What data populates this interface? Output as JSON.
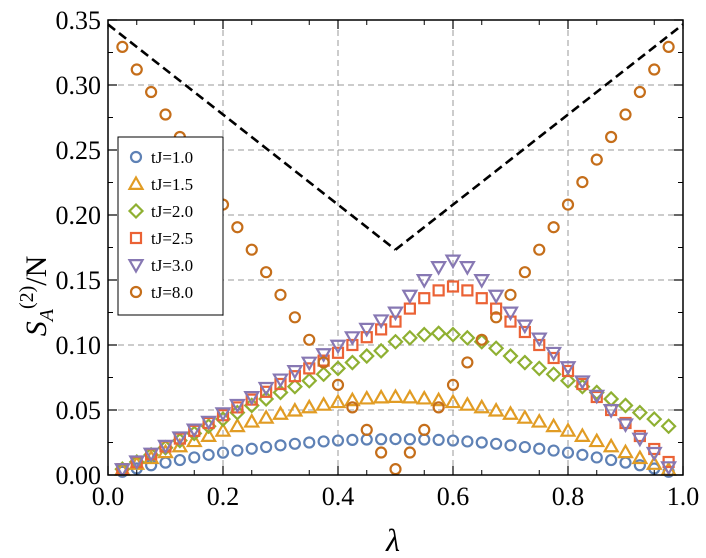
{
  "chart_data": {
    "type": "scatter",
    "xlabel": "λ",
    "ylabel": {
      "base": "S",
      "subscript": "A",
      "superscript": "(2)",
      "suffix": "/N"
    },
    "xlim": [
      0.0,
      1.0
    ],
    "ylim": [
      0.0,
      0.35
    ],
    "x_ticks": [
      "0.0",
      "0.2",
      "0.4",
      "0.6",
      "0.8",
      "1.0"
    ],
    "y_ticks": [
      "0.00",
      "0.05",
      "0.10",
      "0.15",
      "0.20",
      "0.25",
      "0.30",
      "0.35"
    ],
    "grid": true,
    "legend_position": "left-middle",
    "reference_curves": [
      {
        "style": "black-dashed",
        "x": [
          0.0,
          0.5
        ],
        "y": [
          0.3466,
          0.1733
        ]
      },
      {
        "style": "black-dashed",
        "x": [
          0.5,
          1.0
        ],
        "y": [
          0.1733,
          0.3466
        ]
      }
    ],
    "series": [
      {
        "name": "tJ=1.0",
        "marker": "circle",
        "color": "#5e81b5",
        "x": [
          0.025,
          0.05,
          0.075,
          0.1,
          0.125,
          0.15,
          0.175,
          0.2,
          0.225,
          0.25,
          0.275,
          0.3,
          0.325,
          0.35,
          0.375,
          0.4,
          0.425,
          0.45,
          0.475,
          0.5,
          0.525,
          0.55,
          0.575,
          0.6,
          0.625,
          0.65,
          0.675,
          0.7,
          0.725,
          0.75,
          0.775,
          0.8,
          0.825,
          0.85,
          0.875,
          0.9,
          0.925,
          0.95,
          0.975
        ],
        "y": [
          0.0025,
          0.005,
          0.0075,
          0.0095,
          0.0115,
          0.0135,
          0.0155,
          0.0172,
          0.0188,
          0.0202,
          0.0215,
          0.0228,
          0.024,
          0.025,
          0.0258,
          0.0265,
          0.027,
          0.0273,
          0.0275,
          0.0276,
          0.0275,
          0.0273,
          0.027,
          0.0265,
          0.0258,
          0.025,
          0.024,
          0.0228,
          0.0215,
          0.0202,
          0.0188,
          0.0172,
          0.0155,
          0.0135,
          0.0115,
          0.0095,
          0.0075,
          0.005,
          0.0025
        ]
      },
      {
        "name": "tJ=1.5",
        "marker": "triangle-up",
        "color": "#e19c24",
        "x": [
          0.025,
          0.05,
          0.075,
          0.1,
          0.125,
          0.15,
          0.175,
          0.2,
          0.225,
          0.25,
          0.275,
          0.3,
          0.325,
          0.35,
          0.375,
          0.4,
          0.425,
          0.45,
          0.475,
          0.5,
          0.525,
          0.55,
          0.575,
          0.6,
          0.625,
          0.65,
          0.675,
          0.7,
          0.725,
          0.75,
          0.775,
          0.8,
          0.825,
          0.85,
          0.875,
          0.9,
          0.925,
          0.95,
          0.975
        ],
        "y": [
          0.004,
          0.0085,
          0.013,
          0.0175,
          0.022,
          0.026,
          0.03,
          0.034,
          0.0375,
          0.041,
          0.044,
          0.047,
          0.0495,
          0.052,
          0.054,
          0.056,
          0.0575,
          0.0588,
          0.0596,
          0.06,
          0.0596,
          0.0588,
          0.0575,
          0.056,
          0.054,
          0.052,
          0.0495,
          0.047,
          0.044,
          0.041,
          0.0375,
          0.034,
          0.03,
          0.026,
          0.022,
          0.0175,
          0.013,
          0.0085,
          0.004
        ]
      },
      {
        "name": "tJ=2.0",
        "marker": "diamond",
        "color": "#8fb032",
        "x": [
          0.025,
          0.05,
          0.075,
          0.1,
          0.125,
          0.15,
          0.175,
          0.2,
          0.225,
          0.25,
          0.275,
          0.3,
          0.325,
          0.35,
          0.375,
          0.4,
          0.425,
          0.45,
          0.475,
          0.5,
          0.525,
          0.55,
          0.575,
          0.6,
          0.625,
          0.65,
          0.675,
          0.7,
          0.725,
          0.75,
          0.775,
          0.8,
          0.825,
          0.85,
          0.875,
          0.9,
          0.925,
          0.95,
          0.975
        ],
        "y": [
          0.0045,
          0.01,
          0.0155,
          0.021,
          0.0265,
          0.032,
          0.0375,
          0.043,
          0.048,
          0.0535,
          0.0585,
          0.0635,
          0.068,
          0.0725,
          0.0775,
          0.082,
          0.0865,
          0.0915,
          0.0955,
          0.1025,
          0.1055,
          0.108,
          0.109,
          0.108,
          0.1055,
          0.1025,
          0.0975,
          0.0915,
          0.0865,
          0.082,
          0.0775,
          0.0725,
          0.068,
          0.0635,
          0.0585,
          0.0535,
          0.048,
          0.043,
          0.0375
        ]
      },
      {
        "name": "tJ=2.5",
        "marker": "square",
        "color": "#eb6235",
        "x": [
          0.025,
          0.05,
          0.075,
          0.1,
          0.125,
          0.15,
          0.175,
          0.2,
          0.225,
          0.25,
          0.275,
          0.3,
          0.325,
          0.35,
          0.375,
          0.4,
          0.425,
          0.45,
          0.475,
          0.5,
          0.525,
          0.55,
          0.575,
          0.6,
          0.625,
          0.65,
          0.675,
          0.7,
          0.725,
          0.75,
          0.775,
          0.8,
          0.825,
          0.85,
          0.875,
          0.9,
          0.925,
          0.95,
          0.975
        ],
        "y": [
          0.0045,
          0.01,
          0.016,
          0.022,
          0.028,
          0.034,
          0.04,
          0.046,
          0.052,
          0.058,
          0.064,
          0.07,
          0.076,
          0.082,
          0.088,
          0.094,
          0.1,
          0.106,
          0.112,
          0.118,
          0.128,
          0.136,
          0.142,
          0.145,
          0.142,
          0.136,
          0.128,
          0.118,
          0.11,
          0.1,
          0.09,
          0.08,
          0.07,
          0.06,
          0.05,
          0.04,
          0.03,
          0.02,
          0.01
        ]
      },
      {
        "name": "tJ=3.0",
        "marker": "triangle-down",
        "color": "#8778b3",
        "x": [
          0.025,
          0.05,
          0.075,
          0.1,
          0.125,
          0.15,
          0.175,
          0.2,
          0.225,
          0.25,
          0.275,
          0.3,
          0.325,
          0.35,
          0.375,
          0.4,
          0.425,
          0.45,
          0.475,
          0.5,
          0.525,
          0.55,
          0.575,
          0.6,
          0.625,
          0.65,
          0.675,
          0.7,
          0.725,
          0.75,
          0.775,
          0.8,
          0.825,
          0.85,
          0.875,
          0.9,
          0.925,
          0.95,
          0.975
        ],
        "y": [
          0.0045,
          0.0105,
          0.0165,
          0.0225,
          0.029,
          0.035,
          0.041,
          0.0475,
          0.054,
          0.06,
          0.067,
          0.0735,
          0.08,
          0.0865,
          0.093,
          0.0995,
          0.106,
          0.1125,
          0.119,
          0.125,
          0.138,
          0.15,
          0.16,
          0.165,
          0.16,
          0.15,
          0.138,
          0.125,
          0.115,
          0.105,
          0.094,
          0.083,
          0.072,
          0.061,
          0.05,
          0.039,
          0.028,
          0.017,
          0.006
        ]
      },
      {
        "name": "tJ=8.0",
        "marker": "circle",
        "color": "#c56e1a",
        "x": [
          0.025,
          0.05,
          0.075,
          0.1,
          0.125,
          0.15,
          0.175,
          0.2,
          0.225,
          0.25,
          0.275,
          0.3,
          0.325,
          0.35,
          0.375,
          0.4,
          0.425,
          0.45,
          0.475,
          0.5,
          0.525,
          0.55,
          0.575,
          0.6,
          0.625,
          0.65,
          0.675,
          0.7,
          0.725,
          0.75,
          0.775,
          0.8,
          0.825,
          0.85,
          0.875,
          0.9,
          0.925,
          0.95,
          0.975
        ],
        "y": [
          0.3293,
          0.3119,
          0.2946,
          0.2773,
          0.26,
          0.2426,
          0.2253,
          0.208,
          0.1906,
          0.1733,
          0.156,
          0.1386,
          0.1213,
          0.104,
          0.0866,
          0.0693,
          0.052,
          0.0347,
          0.0173,
          0.0045,
          0.0173,
          0.0347,
          0.052,
          0.0693,
          0.0866,
          0.104,
          0.1213,
          0.1386,
          0.156,
          0.1733,
          0.1906,
          0.208,
          0.2253,
          0.2426,
          0.26,
          0.2773,
          0.2946,
          0.3119,
          0.3293
        ]
      }
    ]
  }
}
